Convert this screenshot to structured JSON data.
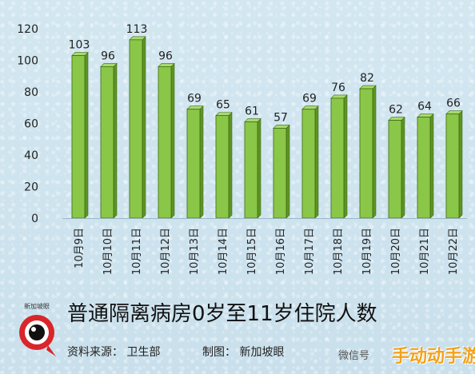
{
  "chart_data": {
    "type": "bar",
    "categories": [
      "10月9日",
      "10月10日",
      "10月11日",
      "10月12日",
      "10月13日",
      "10月14日",
      "10月15日",
      "10月16日",
      "10月17日",
      "10月18日",
      "10月19日",
      "10月20日",
      "10月21日",
      "10月22日"
    ],
    "values": [
      103,
      96,
      113,
      96,
      69,
      65,
      61,
      57,
      69,
      76,
      82,
      62,
      64,
      66
    ],
    "title": "普通隔离病房0岁至11岁住院人数",
    "xlabel": "",
    "ylabel": "",
    "ylim": [
      0,
      120
    ],
    "yticks": [
      0,
      20,
      40,
      60,
      80,
      100,
      120
    ],
    "grid": false,
    "bar_color": "#8ac748",
    "bar_side_color": "#5e9424",
    "bar_border_color": "#3c6a12"
  },
  "footer": {
    "source": "资料来源：  卫生部",
    "maker": "制图：  新加坡眼",
    "wechat": "微信号",
    "watermark": "手动动手游"
  },
  "logo": {
    "text": "新加坡眼",
    "color": "#d8262b"
  }
}
